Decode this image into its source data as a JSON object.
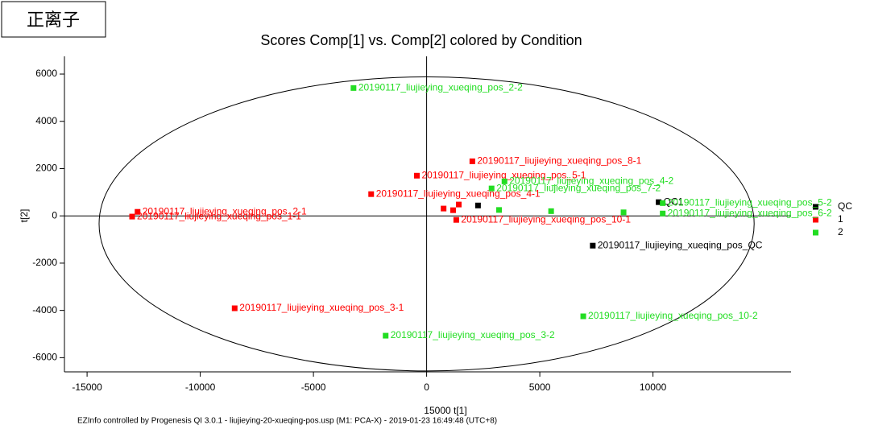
{
  "badge": "正离子",
  "chart_data": {
    "type": "scatter",
    "title": "Scores Comp[1] vs. Comp[2] colored by Condition",
    "x_label": "15000 t[1]",
    "y_label": "t[2]",
    "footer": "EZInfo controlled by Progenesis QI 3.0.1 - liujieying-20-xueqing-pos.usp (M1: PCA-X) - 2019-01-23 16:49:48 (UTC+8)",
    "xlim": [
      -16000,
      16100
    ],
    "ylim": [
      -6600,
      6750
    ],
    "xticks": [
      -15000,
      -10000,
      -5000,
      0,
      5000,
      10000
    ],
    "yticks": [
      -6000,
      -4000,
      -2000,
      0,
      2000,
      4000,
      6000
    ],
    "ellipse": {
      "cx": 0,
      "cy": -340,
      "rx": 14470,
      "ry": 6220
    },
    "legend": "right",
    "series": [
      {
        "name": "QC",
        "color": "#000000",
        "x": [
          7340,
          10250,
          2270
        ],
        "values": [
          -1260,
          580,
          440
        ],
        "labels": [
          "20190117_liujieying_xueqing_pos_QC",
          "QC1",
          null
        ]
      },
      {
        "name": "1",
        "color": "#ff0000",
        "x": [
          2020,
          -430,
          -2450,
          -12770,
          -13010,
          -8480,
          1310,
          750,
          1170,
          1420
        ],
        "values": [
          2310,
          1700,
          920,
          170,
          -30,
          -3910,
          -170,
          310,
          240,
          480
        ],
        "labels": [
          "20190117_liujieying_xueqing_pos_8-1",
          "20190117_liujieying_xueqing_pos_5-1",
          "20190117_liujieying_xueqing_pos_4-1",
          "20190117_liujieying_xueqing_pos_2-1",
          "20190117_liujieying_xueqing_pos_1-1",
          "20190117_liujieying_xueqing_pos_3-1",
          "20190117_liujieying_xueqing_pos_10-1",
          null,
          null,
          null
        ]
      },
      {
        "name": "2",
        "color": "#22dd22",
        "x": [
          -3230,
          3440,
          2870,
          10430,
          10430,
          6920,
          -1810,
          3200,
          5500,
          8700
        ],
        "values": [
          5410,
          1460,
          1160,
          540,
          100,
          -4250,
          -5070,
          250,
          200,
          150
        ],
        "labels": [
          "20190117_liujieying_xueqing_pos_2-2",
          "20190117_liujieying_xueqing_pos_4-2",
          "20190117_liujieying_xueqing_pos_7-2",
          "20190117_liujieying_xueqing_pos_5-2",
          "20190117_liujieying_xueqing_pos_6-2",
          "20190117_liujieying_xueqing_pos_10-2",
          "20190117_liujieying_xueqing_pos_3-2",
          null,
          null,
          null
        ]
      }
    ]
  }
}
